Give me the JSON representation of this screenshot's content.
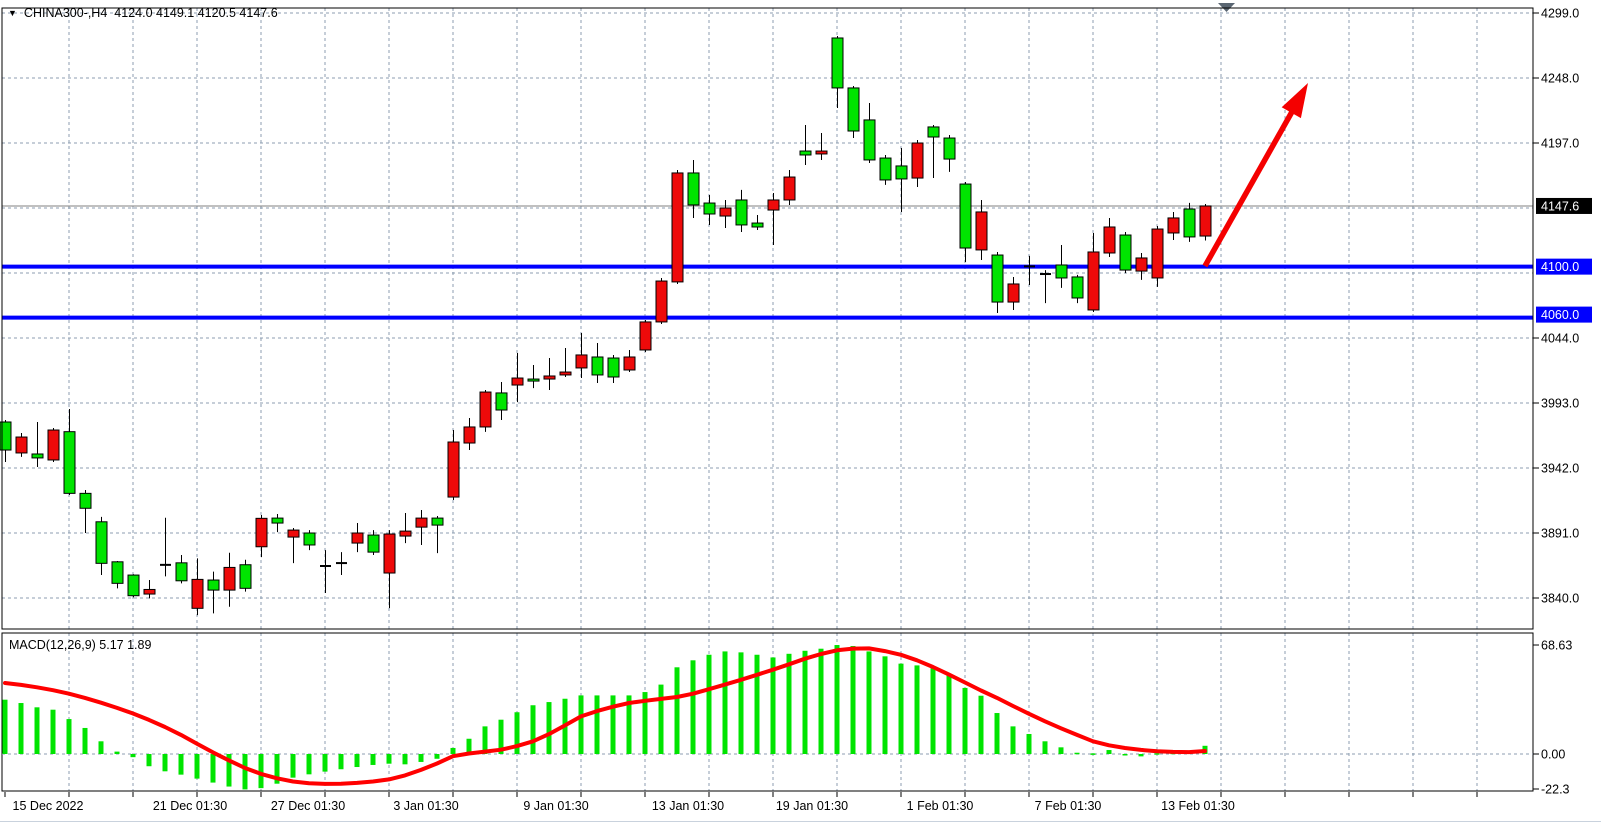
{
  "window": {
    "title_symbol": "CHINA300-,H4",
    "title_ohlc": "4124.0 4149.1 4120.5 4147.6"
  },
  "colors": {
    "background": "#FFFFFF",
    "bull_candle": "#EE0A0A",
    "bear_candle": "#00E400",
    "doji_candle": "#000000",
    "candle_outline": "#000000",
    "grid": "#8C9DB0",
    "support_line": "#0000FF",
    "current_price_line": "#808080",
    "signal_line": "#FF0000",
    "histogram": "#00E400",
    "arrow": "#F40000",
    "axis_text": "#000000",
    "current_price_label_bg": "#000000",
    "support_label_bg": "#0000FF",
    "boxed_label_text": "#FFFFFF",
    "shift_marker": "#5A6672"
  },
  "price_axis": {
    "plain_ticks": [
      "4299.0",
      "4248.0",
      "4197.0",
      "4044.0",
      "3993.0",
      "3942.0",
      "3891.0",
      "3840.0"
    ],
    "plain_tick_values": [
      4299.0,
      4248.0,
      4197.0,
      4044.0,
      3993.0,
      3942.0,
      3891.0,
      3840.0
    ],
    "grid_prices": [
      4299,
      4248,
      4197,
      4146,
      4095,
      4044,
      3993,
      3942,
      3891,
      3840
    ],
    "current_price_label": "4147.6",
    "support_labels": [
      "4100.0",
      "4060.0"
    ]
  },
  "time_axis": {
    "labels": [
      "15 Dec 2022",
      "21 Dec 01:30",
      "27 Dec 01:30",
      "3 Jan 01:30",
      "9 Jan 01:30",
      "13 Jan 01:30",
      "19 Jan 01:30",
      "1 Feb 01:30",
      "7 Feb 01:30",
      "13 Feb 01:30"
    ]
  },
  "indicator": {
    "label": "MACD(12,26,9) 5.17 1.89",
    "name": "MACD(12,26,9)",
    "macd_value": 5.17,
    "signal_value": 1.89,
    "ticks": [
      "68.63",
      "0.00",
      "-22.3"
    ],
    "tick_values": [
      68.63,
      0,
      -22.3
    ]
  },
  "chart_data": [
    {
      "type": "candlestick",
      "title": "CHINA300-,H4",
      "timeframe": "H4",
      "ylim": [
        3820,
        4310
      ],
      "grid": true,
      "current_price": 4147.6,
      "support_lines": [
        4100.0,
        4060.0
      ],
      "annotations": [
        {
          "type": "up-trend-arrow",
          "color": "#F40000"
        }
      ],
      "ohlc": [
        [
          3978.1,
          3979.7,
          3946.7,
          3956.1
        ],
        [
          3953.8,
          3969.5,
          3950.7,
          3966.3
        ],
        [
          3953.0,
          3978.1,
          3942.8,
          3949.9
        ],
        [
          3948.3,
          3973.4,
          3946.7,
          3971.8
        ],
        [
          3970.5,
          3988.3,
          3920.8,
          3922.1
        ],
        [
          3922.1,
          3924.7,
          3891.0,
          3910.4
        ],
        [
          3899.8,
          3903.7,
          3858.0,
          3867.2
        ],
        [
          3868.4,
          3869.0,
          3847.6,
          3851.5
        ],
        [
          3858.0,
          3858.6,
          3840.5,
          3841.8
        ],
        [
          3843.1,
          3854.1,
          3839.7,
          3846.7
        ],
        [
          3866.0,
          3903.0,
          3857.0,
          3866.0
        ],
        [
          3867.6,
          3873.7,
          3851.5,
          3853.5
        ],
        [
          3831.9,
          3871.1,
          3826.6,
          3854.6
        ],
        [
          3854.1,
          3860.7,
          3827.9,
          3846.2
        ],
        [
          3846.2,
          3875.5,
          3833.1,
          3864.0
        ],
        [
          3866.1,
          3870.0,
          3845.0,
          3847.6
        ],
        [
          3880.2,
          3905.1,
          3872.1,
          3902.5
        ],
        [
          3902.7,
          3905.9,
          3891.7,
          3898.8
        ],
        [
          3887.8,
          3894.9,
          3867.4,
          3893.3
        ],
        [
          3891.0,
          3893.3,
          3877.6,
          3881.6
        ],
        [
          3865.1,
          3877.6,
          3843.9,
          3865.1
        ],
        [
          3867.4,
          3876.0,
          3858.0,
          3867.4
        ],
        [
          3883.1,
          3898.8,
          3876.0,
          3891.0
        ],
        [
          3889.4,
          3893.3,
          3873.7,
          3876.0
        ],
        [
          3859.6,
          3893.3,
          3832.1,
          3890.2
        ],
        [
          3888.6,
          3906.7,
          3883.1,
          3892.5
        ],
        [
          3895.6,
          3909.0,
          3881.6,
          3902.7
        ],
        [
          3902.7,
          3904.3,
          3875.2,
          3897.2
        ],
        [
          3919.2,
          3971.8,
          3916.9,
          3962.4
        ],
        [
          3961.6,
          3981.2,
          3956.1,
          3974.2
        ],
        [
          3974.2,
          4003.2,
          3970.3,
          4001.6
        ],
        [
          4000.9,
          4009.5,
          3979.7,
          3987.5
        ],
        [
          4007.1,
          4032.2,
          3993.7,
          4012.6
        ],
        [
          4011.8,
          4022.8,
          4004.7,
          4010.2
        ],
        [
          4011.8,
          4028.3,
          4003.2,
          4014.2
        ],
        [
          4015.0,
          4036.2,
          4013.4,
          4017.3
        ],
        [
          4020.5,
          4047.9,
          4012.6,
          4030.7
        ],
        [
          4029.1,
          4040.1,
          4008.7,
          4015.0
        ],
        [
          4028.3,
          4030.7,
          4008.7,
          4013.4
        ],
        [
          4018.9,
          4034.6,
          4017.3,
          4029.1
        ],
        [
          4034.6,
          4058.1,
          4033.0,
          4056.6
        ],
        [
          4056.6,
          4091.1,
          4055.0,
          4088.7
        ],
        [
          4088.0,
          4175.8,
          4086.4,
          4173.5
        ],
        [
          4173.5,
          4183.7,
          4138.2,
          4148.4
        ],
        [
          4149.9,
          4156.2,
          4132.7,
          4141.3
        ],
        [
          4139.7,
          4152.3,
          4130.3,
          4146.0
        ],
        [
          4152.3,
          4160.2,
          4127.2,
          4132.7
        ],
        [
          4134.2,
          4140.5,
          4128.7,
          4131.1
        ],
        [
          4144.4,
          4157.8,
          4117.0,
          4152.3
        ],
        [
          4152.3,
          4175.8,
          4148.4,
          4170.3
        ],
        [
          4190.7,
          4211.1,
          4179.7,
          4187.6
        ],
        [
          4188.4,
          4204.8,
          4183.7,
          4190.7
        ],
        [
          4279.4,
          4281.0,
          4224.5,
          4240.2
        ],
        [
          4240.2,
          4241.7,
          4200.9,
          4206.4
        ],
        [
          4215.1,
          4228.4,
          4181.3,
          4183.7
        ],
        [
          4185.2,
          4187.6,
          4164.1,
          4168.0
        ],
        [
          4179.0,
          4193.1,
          4142.9,
          4168.8
        ],
        [
          4169.5,
          4199.4,
          4162.5,
          4197.0
        ],
        [
          4209.6,
          4211.1,
          4169.5,
          4201.7
        ],
        [
          4200.9,
          4203.3,
          4174.3,
          4184.4
        ],
        [
          4164.8,
          4166.4,
          4103.6,
          4114.6
        ],
        [
          4113.1,
          4152.3,
          4105.2,
          4142.9
        ],
        [
          4109.1,
          4111.5,
          4063.6,
          4072.2
        ],
        [
          4072.2,
          4091.9,
          4066.0,
          4086.4
        ],
        [
          4100.2,
          4108.4,
          4085.6,
          4100.2
        ],
        [
          4094.2,
          4097.3,
          4071.4,
          4094.2
        ],
        [
          4101.3,
          4117.0,
          4083.3,
          4091.1
        ],
        [
          4091.9,
          4093.5,
          4071.4,
          4075.4
        ],
        [
          4066.0,
          4126.4,
          4064.4,
          4111.5
        ],
        [
          4110.7,
          4138.2,
          4107.6,
          4131.1
        ],
        [
          4124.8,
          4127.2,
          4094.9,
          4097.3
        ],
        [
          4096.5,
          4110.7,
          4089.6,
          4106.8
        ],
        [
          4091.1,
          4131.9,
          4084.1,
          4129.5
        ],
        [
          4126.4,
          4142.9,
          4120.9,
          4138.2
        ],
        [
          4145.2,
          4150.0,
          4119.4,
          4123.3
        ],
        [
          4124.0,
          4149.1,
          4120.5,
          4147.6
        ]
      ]
    },
    {
      "type": "bar",
      "name": "MACD histogram",
      "ylim": [
        -22.3,
        68.63
      ],
      "values": [
        34.2,
        32.1,
        29.4,
        27.9,
        22.0,
        16.4,
        8.0,
        1.5,
        -2.0,
        -7.7,
        -10.9,
        -13.0,
        -15.5,
        -18.0,
        -20.5,
        -22.3,
        -21.5,
        -18.7,
        -14.9,
        -12.8,
        -11.1,
        -9.6,
        -8.2,
        -6.9,
        -6.1,
        -6.5,
        -5.0,
        -3.0,
        3.8,
        9.6,
        17.4,
        21.6,
        26.3,
        30.7,
        32.7,
        34.8,
        36.9,
        36.9,
        36.9,
        36.9,
        39.0,
        43.7,
        54.6,
        59.0,
        62.5,
        64.6,
        64.0,
        62.5,
        60.8,
        63.1,
        65.0,
        66.3,
        68.63,
        68.0,
        64.6,
        61.5,
        56.9,
        55.8,
        54.1,
        50.6,
        41.6,
        36.7,
        25.8,
        17.4,
        12.6,
        8.0,
        4.2,
        0.8,
        0.4,
        2.5,
        -0.8,
        -1.5,
        0.5,
        0.8,
        1.2,
        5.17
      ]
    },
    {
      "type": "line",
      "name": "MACD signal",
      "values": [
        44.7,
        43.5,
        42.0,
        40.2,
        38.0,
        35.3,
        32.3,
        29.0,
        25.5,
        21.5,
        17.0,
        12.0,
        6.5,
        1.0,
        -4.0,
        -8.8,
        -12.5,
        -15.3,
        -17.3,
        -18.4,
        -18.8,
        -18.7,
        -18.2,
        -17.3,
        -16.0,
        -13.5,
        -10.0,
        -6.0,
        -1.4,
        0.3,
        1.5,
        2.7,
        5.0,
        8.0,
        12.5,
        18.0,
        23.7,
        27.0,
        29.8,
        32.1,
        33.5,
        34.7,
        35.9,
        38.0,
        40.8,
        43.7,
        46.7,
        49.9,
        53.1,
        56.5,
        60.0,
        63.0,
        65.3,
        66.4,
        66.5,
        64.8,
        62.5,
        59.0,
        54.8,
        50.0,
        45.0,
        40.0,
        35.3,
        30.2,
        25.3,
        20.6,
        16.2,
        12.0,
        8.0,
        5.5,
        3.8,
        2.6,
        1.7,
        1.3,
        1.2,
        1.89
      ]
    }
  ]
}
